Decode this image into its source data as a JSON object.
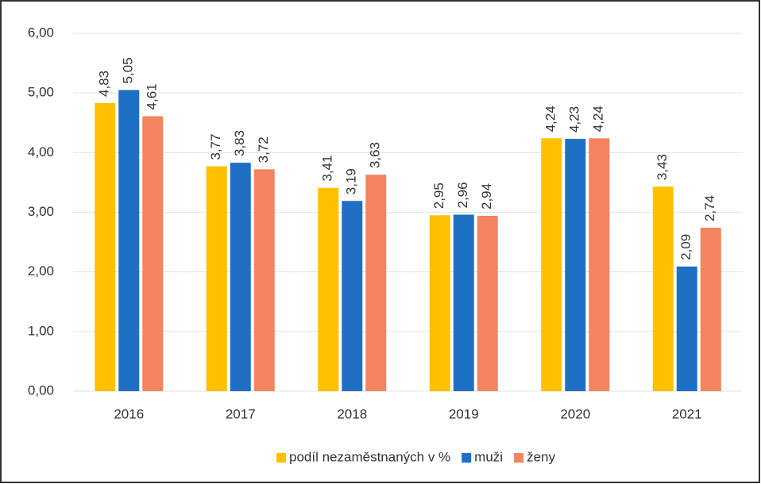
{
  "chart_data": {
    "type": "bar",
    "categories": [
      "2016",
      "2017",
      "2018",
      "2019",
      "2020",
      "2021"
    ],
    "series": [
      {
        "name": "podíl nezaměstnaných v %",
        "color": "#FFC000",
        "values": [
          4.83,
          3.77,
          3.41,
          2.95,
          4.24,
          3.43
        ],
        "value_labels": [
          "4,83",
          "3,77",
          "3,41",
          "2,95",
          "4,24",
          "3,43"
        ]
      },
      {
        "name": "muži",
        "color": "#1F6FC5",
        "values": [
          5.05,
          3.83,
          3.19,
          2.96,
          4.23,
          2.09
        ],
        "value_labels": [
          "5,05",
          "3,83",
          "3,19",
          "2,96",
          "4,23",
          "2,09"
        ]
      },
      {
        "name": "ženy",
        "color": "#F4845F",
        "values": [
          4.61,
          3.72,
          3.63,
          2.94,
          4.24,
          2.74
        ],
        "value_labels": [
          "4,61",
          "3,72",
          "3,63",
          "2,94",
          "4,24",
          "2,74"
        ]
      }
    ],
    "ylim": [
      0,
      6
    ],
    "yticks": [
      {
        "value": 0,
        "label": "0,00"
      },
      {
        "value": 1,
        "label": "1,00"
      },
      {
        "value": 2,
        "label": "2,00"
      },
      {
        "value": 3,
        "label": "3,00"
      },
      {
        "value": 4,
        "label": "4,00"
      },
      {
        "value": 5,
        "label": "5,00"
      },
      {
        "value": 6,
        "label": "6,00"
      }
    ],
    "grid": true,
    "legend": "bottom"
  }
}
